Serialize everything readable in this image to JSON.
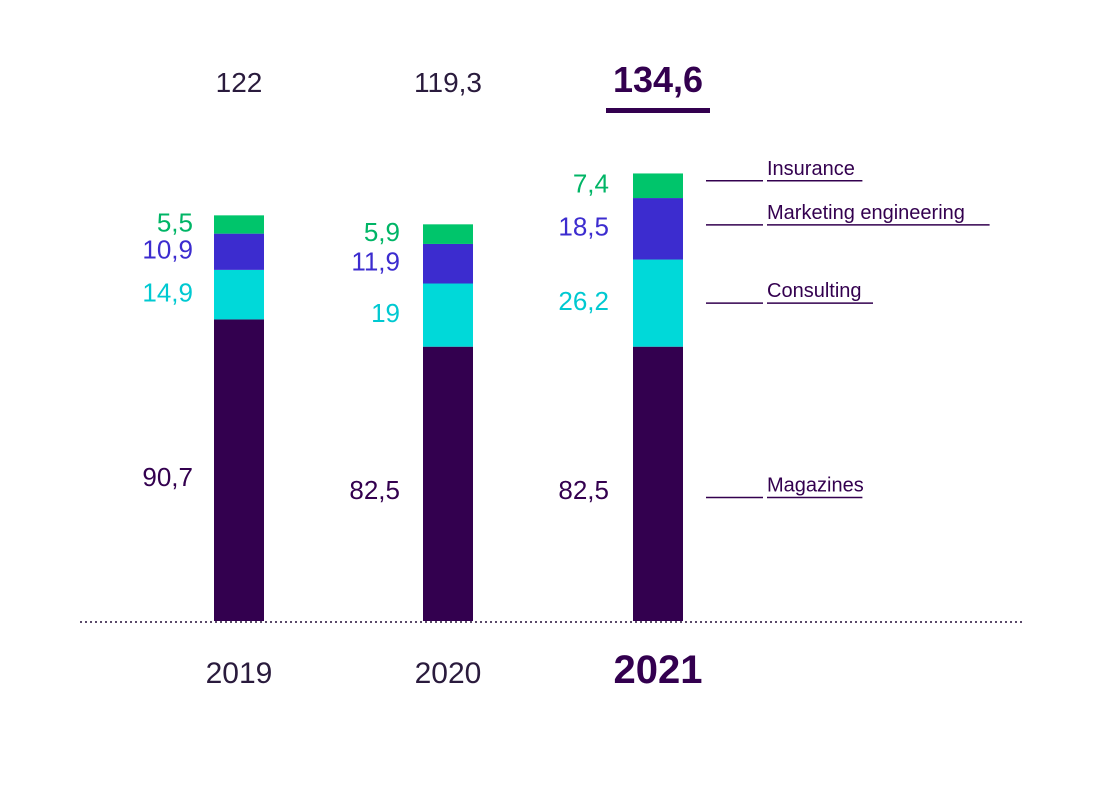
{
  "chart_data": {
    "type": "bar",
    "stacked": true,
    "categories": [
      "2019",
      "2020",
      "2021"
    ],
    "totals": [
      "122",
      "119,3",
      "134,6"
    ],
    "highlight_category": "2021",
    "series": [
      {
        "name": "Magazines",
        "color": "#33004f",
        "values": [
          90.7,
          82.5,
          82.5
        ],
        "labels": [
          "90,7",
          "82,5",
          "82,5"
        ]
      },
      {
        "name": "Consulting",
        "color": "#00d9d9",
        "values": [
          14.9,
          19,
          26.2
        ],
        "labels": [
          "14,9",
          "19",
          "26,2"
        ]
      },
      {
        "name": "Marketing engineering",
        "color": "#3c2ccf",
        "values": [
          10.9,
          11.9,
          18.5
        ],
        "labels": [
          "10,9",
          "11,9",
          "18,5"
        ]
      },
      {
        "name": "Insurance",
        "color": "#00c56b",
        "values": [
          5.5,
          5.9,
          7.4
        ],
        "labels": [
          "5,5",
          "5,9",
          "7,4"
        ]
      }
    ],
    "legend_position": "right, attached to 2021 bar",
    "baseline_style": "dotted",
    "grid": false,
    "title": "",
    "xlabel": "",
    "ylabel": ""
  },
  "colors": {
    "text_dark": "#2a1b3d",
    "accent_dark": "#33004f",
    "consulting_label": "#00c9d1",
    "marketing_label": "#3c2ccf",
    "insurance_label": "#00b566",
    "baseline": "#5a4a6a"
  }
}
